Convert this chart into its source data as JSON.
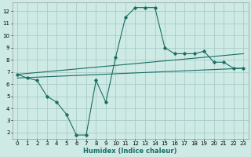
{
  "xlabel": "Humidex (Indice chaleur)",
  "background_color": "#ceeae4",
  "grid_color": "#aacccc",
  "line_color": "#1a6e64",
  "xlim": [
    -0.5,
    23.5
  ],
  "ylim": [
    1.5,
    12.7
  ],
  "xticks": [
    0,
    1,
    2,
    3,
    4,
    5,
    6,
    7,
    8,
    9,
    10,
    11,
    12,
    13,
    14,
    15,
    16,
    17,
    18,
    19,
    20,
    21,
    22,
    23
  ],
  "yticks": [
    2,
    3,
    4,
    5,
    6,
    7,
    8,
    9,
    10,
    11,
    12
  ],
  "line1_x": [
    0,
    1,
    2,
    3,
    4,
    5,
    6,
    7,
    8,
    9,
    10,
    11,
    12,
    13,
    14,
    15,
    16,
    17,
    18,
    19,
    20,
    21,
    22,
    23
  ],
  "line1_y": [
    6.8,
    6.5,
    6.3,
    5.0,
    4.5,
    3.5,
    1.8,
    1.8,
    6.3,
    4.5,
    8.2,
    11.5,
    12.3,
    12.3,
    12.3,
    9.0,
    8.5,
    8.5,
    8.5,
    8.7,
    7.8,
    7.8,
    7.3,
    7.3
  ],
  "line2_x": [
    0,
    23
  ],
  "line2_y": [
    6.5,
    7.3
  ],
  "line3_x": [
    0,
    23
  ],
  "line3_y": [
    6.8,
    8.5
  ]
}
